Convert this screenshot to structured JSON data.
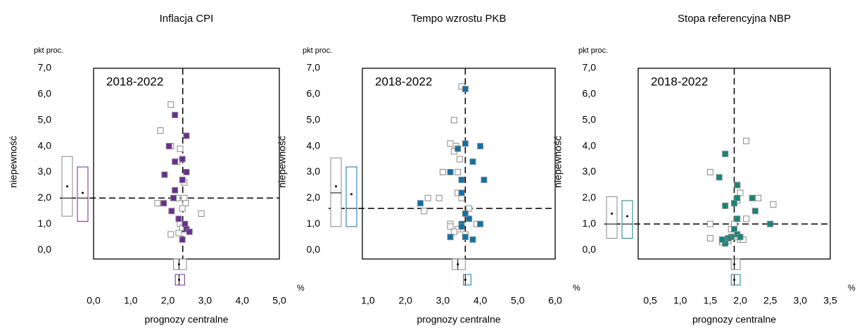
{
  "chart_data": [
    {
      "type": "scatter",
      "title": "Inflacja CPI",
      "annotation": "2018-2022",
      "x_label": "prognozy centralne",
      "y_label": "niepewność",
      "y_unit": "pkt proc.",
      "x_unit": "%",
      "xlim": [
        0,
        5
      ],
      "xticks": [
        {
          "value": 0,
          "label": "0,0"
        },
        {
          "value": 1,
          "label": "1,0"
        },
        {
          "value": 2,
          "label": "2,0"
        },
        {
          "value": 3,
          "label": "3,0"
        },
        {
          "value": 4,
          "label": "4,0"
        },
        {
          "value": 5,
          "label": "5,0"
        }
      ],
      "ylim": [
        -0.35,
        7
      ],
      "yticks": [
        {
          "value": 0,
          "label": "0,0"
        },
        {
          "value": 1,
          "label": "1,0"
        },
        {
          "value": 2,
          "label": "2,0"
        },
        {
          "value": 3,
          "label": "3,0"
        },
        {
          "value": 4,
          "label": "4,0"
        },
        {
          "value": 5,
          "label": "5,0"
        },
        {
          "value": 6,
          "label": "6,0"
        },
        {
          "value": 7,
          "label": "7,0"
        }
      ],
      "vline": 2.4,
      "hline": 2.0,
      "series": [
        {
          "color": "#8a8a8a",
          "filled": false,
          "x": [
            2.08,
            1.8,
            2.08,
            2.33,
            2.25,
            2.44,
            2.25,
            2.44,
            2.48,
            1.72,
            2.39,
            2.9,
            2.33,
            2.39,
            2.08,
            2.29
          ],
          "values": [
            5.6,
            4.6,
            4.0,
            3.9,
            3.4,
            2.6,
            2.0,
            2.0,
            1.8,
            1.8,
            1.6,
            1.4,
            1.0,
            0.85,
            0.6,
            0.65
          ],
          "y_box": {
            "q1": 1.3,
            "median": 2.0,
            "q3": 3.6,
            "mean": 2.45
          },
          "x_box": {
            "q1": 2.15,
            "median": 2.3,
            "q3": 2.5,
            "mean": 2.3
          }
        },
        {
          "color": "#6a2c91",
          "filled": true,
          "x": [
            2.19,
            2.5,
            2.03,
            2.39,
            2.19,
            2.5,
            1.91,
            2.39,
            2.19,
            2.15,
            1.89,
            2.1,
            2.29,
            2.46,
            2.5,
            2.58,
            2.39
          ],
          "values": [
            5.2,
            4.4,
            4.0,
            3.5,
            3.4,
            3.0,
            2.9,
            2.7,
            2.3,
            2.0,
            1.8,
            1.5,
            1.2,
            1.0,
            0.8,
            0.7,
            0.4
          ],
          "y_box": {
            "q1": 1.1,
            "median": 2.0,
            "q3": 3.2,
            "mean": 2.2
          },
          "x_box": {
            "q1": 2.2,
            "median": 2.3,
            "q3": 2.45,
            "mean": 2.3
          }
        }
      ]
    },
    {
      "type": "scatter",
      "title": "Tempo wzrostu PKB",
      "annotation": "2018-2022",
      "x_label": "prognozy centralne",
      "y_label": "niepewność",
      "y_unit": "pkt proc.",
      "x_unit": "%",
      "xlim": [
        0.85,
        6
      ],
      "xticks": [
        {
          "value": 1,
          "label": "1,0"
        },
        {
          "value": 2,
          "label": "2,0"
        },
        {
          "value": 3,
          "label": "3,0"
        },
        {
          "value": 4,
          "label": "4,0"
        },
        {
          "value": 5,
          "label": "5,0"
        },
        {
          "value": 6,
          "label": "6,0"
        }
      ],
      "ylim": [
        -0.35,
        7
      ],
      "yticks": [
        {
          "value": 0,
          "label": "0,0"
        },
        {
          "value": 1,
          "label": "1,0"
        },
        {
          "value": 2,
          "label": "2,0"
        },
        {
          "value": 3,
          "label": "3,0"
        },
        {
          "value": 4,
          "label": "4,0"
        },
        {
          "value": 5,
          "label": "5,0"
        },
        {
          "value": 6,
          "label": "6,0"
        },
        {
          "value": 7,
          "label": "7,0"
        }
      ],
      "vline": 3.6,
      "hline": 1.6,
      "series": [
        {
          "color": "#8a8a8a",
          "filled": false,
          "x": [
            3.5,
            3.3,
            3.2,
            3.35,
            3.3,
            3.45,
            3.0,
            3.4,
            3.4,
            3.5,
            2.6,
            2.9,
            2.5,
            3.7,
            3.2,
            3.2,
            3.4,
            3.3,
            3.9,
            3.6
          ],
          "values": [
            6.3,
            5.0,
            4.1,
            4.0,
            3.8,
            3.5,
            3.0,
            3.0,
            2.2,
            2.0,
            2.0,
            2.0,
            1.5,
            1.6,
            1.0,
            0.9,
            0.8,
            0.7,
            1.0,
            0.6
          ],
          "y_box": {
            "q1": 0.9,
            "median": 2.2,
            "q3": 3.55,
            "mean": 2.45
          },
          "x_box": {
            "q1": 3.25,
            "median": 3.4,
            "q3": 3.6,
            "mean": 3.4
          }
        },
        {
          "color": "#1070a8",
          "filled": true,
          "x": [
            3.6,
            4.0,
            3.6,
            3.4,
            3.8,
            3.2,
            4.1,
            3.5,
            3.5,
            2.4,
            3.6,
            3.7,
            3.5,
            4.0,
            3.2,
            3.6,
            3.8,
            3.5
          ],
          "values": [
            6.2,
            4.0,
            4.1,
            3.9,
            3.4,
            3.0,
            2.7,
            2.7,
            2.2,
            1.8,
            1.4,
            1.2,
            1.0,
            1.0,
            0.5,
            0.5,
            0.4,
            0.9
          ],
          "y_box": {
            "q1": 0.9,
            "median": 1.6,
            "q3": 3.2,
            "mean": 2.15
          },
          "x_box": {
            "q1": 3.55,
            "median": 3.6,
            "q3": 3.75,
            "mean": 3.6
          }
        }
      ]
    },
    {
      "type": "scatter",
      "title": "Stopa referencyjna NBP",
      "annotation": "2018-2022",
      "x_label": "prognozy centralne",
      "y_label": "niepewność",
      "y_unit": "pkt proc.",
      "x_unit": "%",
      "xlim": [
        0.3,
        3.5
      ],
      "xticks": [
        {
          "value": 0.5,
          "label": "0,5"
        },
        {
          "value": 1,
          "label": "1,0"
        },
        {
          "value": 1.5,
          "label": "1,5"
        },
        {
          "value": 2,
          "label": "2,0"
        },
        {
          "value": 2.5,
          "label": "2,5"
        },
        {
          "value": 3,
          "label": "3,0"
        },
        {
          "value": 3.5,
          "label": "3,5"
        }
      ],
      "ylim": [
        -0.35,
        7
      ],
      "yticks": [
        {
          "value": 0,
          "label": "0,0"
        },
        {
          "value": 1,
          "label": "1,0"
        },
        {
          "value": 2,
          "label": "2,0"
        },
        {
          "value": 3,
          "label": "3,0"
        },
        {
          "value": 4,
          "label": "4,0"
        },
        {
          "value": 5,
          "label": "5,0"
        },
        {
          "value": 6,
          "label": "6,0"
        },
        {
          "value": 7,
          "label": "7,0"
        }
      ],
      "vline": 1.9,
      "hline": 1.0,
      "series": [
        {
          "color": "#8a8a8a",
          "filled": false,
          "x": [
            2.1,
            1.5,
            1.95,
            2.0,
            1.95,
            2.3,
            2.55,
            2.1,
            1.5,
            1.9,
            1.85,
            1.5,
            1.7,
            2.0,
            1.9,
            1.95,
            2.05,
            1.8
          ],
          "values": [
            4.2,
            3.0,
            2.5,
            2.2,
            1.9,
            2.0,
            1.75,
            1.2,
            1.0,
            1.0,
            0.8,
            0.45,
            0.3,
            0.4,
            0.5,
            0.5,
            0.4,
            0.35
          ],
          "y_box": {
            "q1": 0.45,
            "median": 1.0,
            "q3": 2.05,
            "mean": 1.4
          },
          "x_box": {
            "q1": 1.85,
            "median": 1.9,
            "q3": 2.0,
            "mean": 1.9
          }
        },
        {
          "color": "#13857a",
          "filled": true,
          "x": [
            1.75,
            1.65,
            1.95,
            1.95,
            2.2,
            2.25,
            1.9,
            1.75,
            1.95,
            2.5,
            1.9,
            1.95,
            1.85,
            1.8,
            1.75,
            1.75,
            1.7,
            2.0
          ],
          "values": [
            3.7,
            2.8,
            2.5,
            2.0,
            2.0,
            1.5,
            1.8,
            1.7,
            1.2,
            1.0,
            0.8,
            0.6,
            0.5,
            0.45,
            0.35,
            0.25,
            0.4,
            0.5
          ],
          "y_box": {
            "q1": 0.45,
            "median": 1.0,
            "q3": 1.9,
            "mean": 1.3
          },
          "x_box": {
            "q1": 1.85,
            "median": 1.9,
            "q3": 2.0,
            "mean": 1.9
          }
        }
      ]
    }
  ]
}
